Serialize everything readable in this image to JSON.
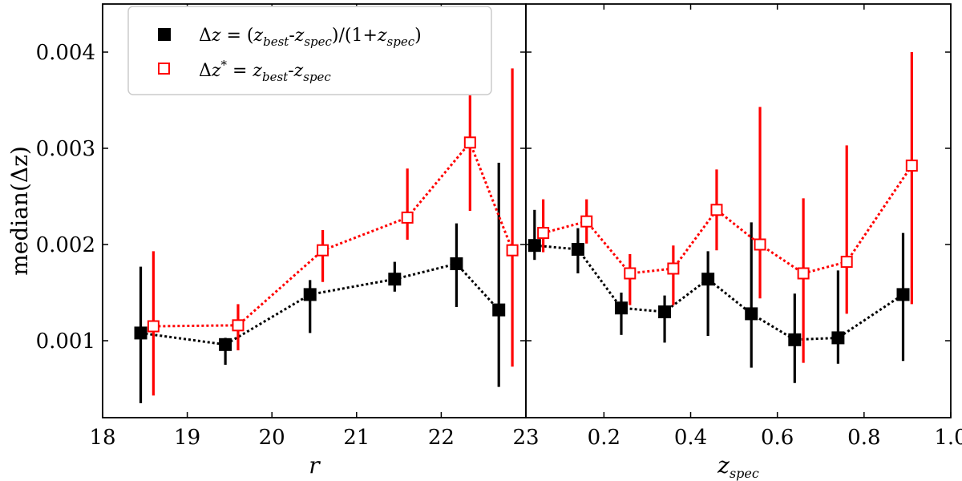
{
  "chart_data": [
    {
      "type": "scatter",
      "panel": "left",
      "xlabel": "r",
      "ylabel": "median(Δz)",
      "xlim": [
        18,
        23
      ],
      "ylim": [
        0.0002,
        0.0045
      ],
      "xticks": [
        "18",
        "19",
        "20",
        "21",
        "22",
        "23"
      ],
      "yticks": [
        "0.001",
        "0.002",
        "0.003",
        "0.004"
      ],
      "grid": false,
      "legend_position": "top-left",
      "legend": [
        {
          "symbol": "filled-square",
          "color": "#000000",
          "label": "Δz = (z_best-z_spec)/(1+z_spec)"
        },
        {
          "symbol": "open-square",
          "color": "#ff0000",
          "label": "Δz* = z_best-z_spec"
        }
      ],
      "series": [
        {
          "name": "Δz = (z_best-z_spec)/(1+z_spec)",
          "color": "#000000",
          "marker": "filled-square",
          "x": [
            18.45,
            19.45,
            20.45,
            21.45,
            22.18,
            22.68
          ],
          "y": [
            0.00108,
            0.00096,
            0.00148,
            0.00164,
            0.0018,
            0.00132
          ],
          "err_low": [
            0.00035,
            0.00075,
            0.00108,
            0.00151,
            0.00135,
            0.00052
          ],
          "err_high": [
            0.00177,
            0.00103,
            0.00163,
            0.00182,
            0.00222,
            0.00285
          ]
        },
        {
          "name": "Δz* = z_best-z_spec",
          "color": "#ff0000",
          "marker": "open-square",
          "x": [
            18.6,
            19.6,
            20.6,
            21.6,
            22.34,
            22.84
          ],
          "y": [
            0.00115,
            0.00116,
            0.00194,
            0.00228,
            0.00306,
            0.00194
          ],
          "err_low": [
            0.00043,
            0.0009,
            0.00161,
            0.00205,
            0.00235,
            0.00073
          ],
          "err_high": [
            0.00193,
            0.00138,
            0.00215,
            0.00279,
            0.00355,
            0.00383
          ]
        }
      ]
    },
    {
      "type": "scatter",
      "panel": "right",
      "xlabel": "z_spec",
      "ylabel": "",
      "xlim": [
        0.02,
        1.0
      ],
      "ylim": [
        0.0002,
        0.0045
      ],
      "xticks": [
        "0.2",
        "0.4",
        "0.6",
        "0.8",
        "1.0"
      ],
      "grid": false,
      "series": [
        {
          "name": "Δz = (z_best-z_spec)/(1+z_spec)",
          "color": "#000000",
          "marker": "filled-square",
          "x": [
            0.04,
            0.14,
            0.24,
            0.34,
            0.44,
            0.54,
            0.64,
            0.74,
            0.89
          ],
          "y": [
            0.00199,
            0.00195,
            0.00134,
            0.0013,
            0.00164,
            0.00128,
            0.00101,
            0.00103,
            0.00148
          ],
          "err_low": [
            0.00184,
            0.0017,
            0.00106,
            0.00098,
            0.00105,
            0.00072,
            0.00056,
            0.00076,
            0.00079
          ],
          "err_high": [
            0.00236,
            0.00217,
            0.0015,
            0.00147,
            0.00193,
            0.00223,
            0.00149,
            0.00173,
            0.00212
          ]
        },
        {
          "name": "Δz* = z_best-z_spec",
          "color": "#ff0000",
          "marker": "open-square",
          "x": [
            0.06,
            0.16,
            0.26,
            0.36,
            0.46,
            0.56,
            0.66,
            0.76,
            0.91
          ],
          "y": [
            0.00212,
            0.00224,
            0.0017,
            0.00175,
            0.00236,
            0.002,
            0.0017,
            0.00182,
            0.00282
          ],
          "err_low": [
            0.00192,
            0.00201,
            0.00137,
            0.00137,
            0.00194,
            0.00144,
            0.00077,
            0.00128,
            0.00138
          ],
          "err_high": [
            0.00247,
            0.00247,
            0.0019,
            0.00199,
            0.00278,
            0.00343,
            0.00248,
            0.00303,
            0.004
          ]
        }
      ]
    }
  ]
}
